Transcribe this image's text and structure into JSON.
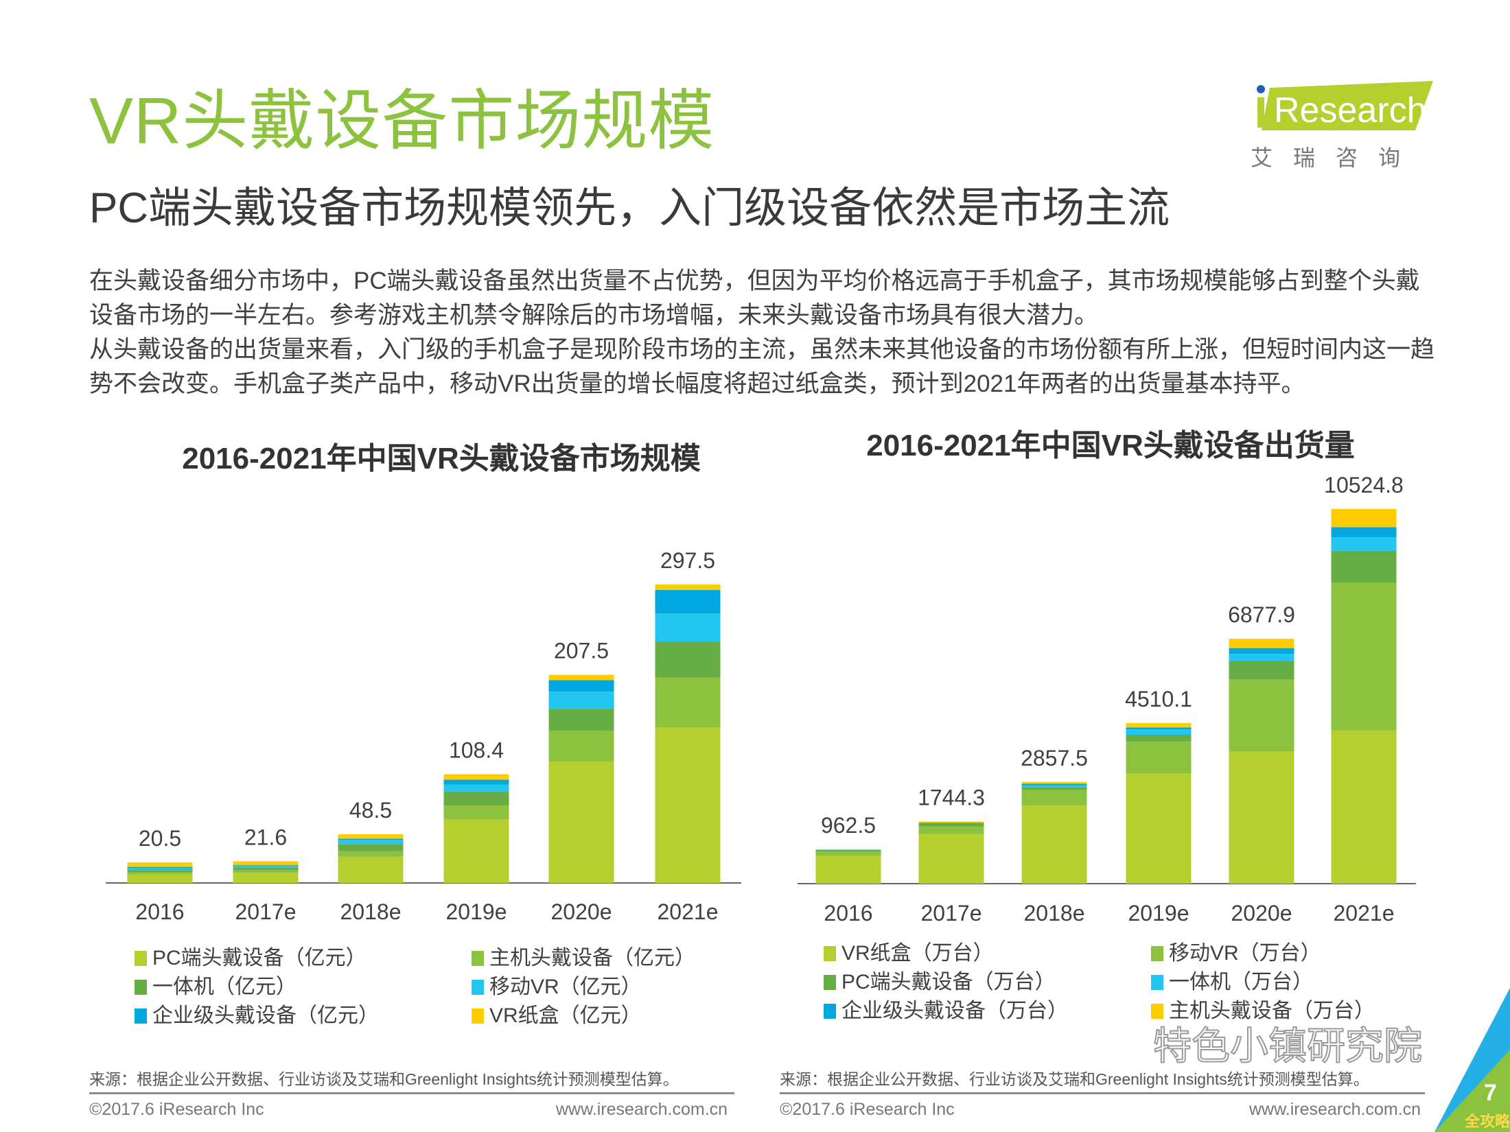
{
  "header": {
    "title": "VR头戴设备市场规模",
    "subtitle": "PC端头戴设备市场规模领先，入门级设备依然是市场主流",
    "paragraphs": [
      "在头戴设备细分市场中，PC端头戴设备虽然出货量不占优势，但因为平均价格远高于手机盒子，其市场规模能够占到整个头戴设备市场的一半左右。参考游戏主机禁令解除后的市场增幅，未来头戴设备市场具有很大潜力。",
      "从头戴设备的出货量来看，入门级的手机盒子是现阶段市场的主流，虽然未来其他设备的市场份额有所上涨，但短时间内这一趋势不会改变。手机盒子类产品中，移动VR出货量的增长幅度将超过纸盒类，预计到2021年两者的出货量基本持平。"
    ]
  },
  "logo": {
    "brand": "iResearch",
    "cn": "艾瑞咨询",
    "color": "#b5cf2e",
    "dot_color": "#1e5fb4"
  },
  "colors": {
    "lime": "#b5cf2e",
    "mid_green": "#8dc23f",
    "dark_green": "#66ad45",
    "cyan": "#22c6f0",
    "blue": "#00a8e1",
    "yellow": "#ffcc00"
  },
  "chart_data": [
    {
      "type": "bar",
      "stacked": true,
      "title": "2016-2021年中国VR头戴设备市场规模",
      "categories": [
        "2016",
        "2017e",
        "2018e",
        "2019e",
        "2020e",
        "2021e"
      ],
      "totals": [
        "20.5",
        "21.6",
        "48.5",
        "108.4",
        "207.5",
        "297.5"
      ],
      "total_values": [
        20.5,
        21.6,
        48.5,
        108.4,
        207.5,
        297.5
      ],
      "ylim": [
        0,
        300
      ],
      "grid": false,
      "legend_position": "bottom",
      "series": [
        {
          "name": "PC端头戴设备（亿元）",
          "color": "#b5cf2e",
          "values": [
            8.6,
            10.1,
            26.1,
            63.4,
            121.1,
            155.0
          ]
        },
        {
          "name": "主机头戴设备（亿元）",
          "color": "#8dc23f",
          "values": [
            1.9,
            2.4,
            5.5,
            13.9,
            30.5,
            49.8
          ]
        },
        {
          "name": "一体机（亿元）",
          "color": "#66ad45",
          "values": [
            2.4,
            3.1,
            7.2,
            13.6,
            22.3,
            35.6
          ]
        },
        {
          "name": "移动VR（亿元）",
          "color": "#22c6f0",
          "values": [
            1.9,
            1.7,
            4.1,
            7.2,
            16.8,
            28.2
          ]
        },
        {
          "name": "企业级头戴设备（亿元）",
          "color": "#00a8e1",
          "values": [
            1.2,
            0.7,
            1.3,
            4.8,
            11.5,
            23.6
          ]
        },
        {
          "name": "VR纸盒（亿元）",
          "color": "#ffcc00",
          "values": [
            4.5,
            3.6,
            4.3,
            5.5,
            5.3,
            5.3
          ]
        }
      ],
      "source": "来源：根据企业公开数据、行业访谈及艾瑞和Greenlight Insights统计预测模型估算。",
      "copyright": "©2017.6 iResearch Inc",
      "website": "www.iresearch.com.cn"
    },
    {
      "type": "bar",
      "stacked": true,
      "title": "2016-2021年中国VR头戴设备出货量",
      "categories": [
        "2016",
        "2017e",
        "2018e",
        "2019e",
        "2020e",
        "2021e"
      ],
      "totals": [
        "962.5",
        "1744.3",
        "2857.5",
        "4510.1",
        "6877.9",
        "10524.8"
      ],
      "total_values": [
        962.5,
        1744.3,
        2857.5,
        4510.1,
        6877.9,
        10524.8
      ],
      "ylim": [
        0,
        10600
      ],
      "grid": false,
      "legend_position": "bottom",
      "series": [
        {
          "name": "VR纸盒（万台）",
          "color": "#b5cf2e",
          "values": [
            777.5,
            1394.3,
            2195.5,
            3095.1,
            3711.9,
            4302.8
          ]
        },
        {
          "name": "移动VR（万台）",
          "color": "#8dc23f",
          "values": [
            122,
            213,
            434,
            898,
            2025,
            4151
          ]
        },
        {
          "name": "PC端头戴设备（万台）",
          "color": "#66ad45",
          "values": [
            46,
            91,
            76,
            190,
            518,
            899
          ]
        },
        {
          "name": "一体机（万台）",
          "color": "#22c6f0",
          "values": [
            6,
            8,
            61,
            152,
            198,
            381
          ]
        },
        {
          "name": "企业级头戴设备（万台）",
          "color": "#00a8e1",
          "values": [
            6,
            8,
            38,
            53,
            166,
            282
          ]
        },
        {
          "name": "主机头戴设备（万台）",
          "color": "#ffcc00",
          "values": [
            5,
            30,
            53,
            122,
            259,
            509
          ]
        }
      ],
      "source": "来源：根据企业公开数据、行业访谈及艾瑞和Greenlight Insights统计预测模型估算。",
      "copyright": "©2017.6 iResearch Inc",
      "website": "www.iresearch.com.cn"
    }
  ],
  "page": {
    "number": "7",
    "badge": "全攻略",
    "watermark": "特色小镇研究院"
  }
}
